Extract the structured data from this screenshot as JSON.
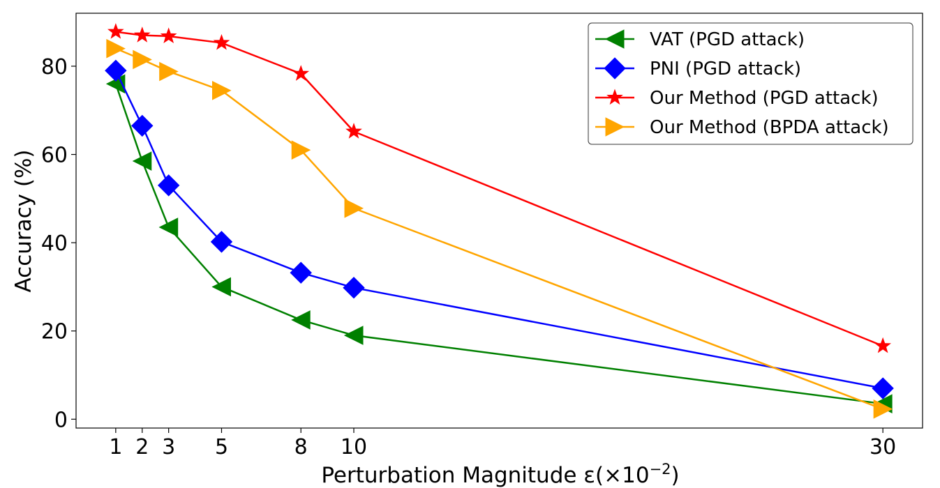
{
  "chart_data": {
    "type": "line",
    "title": "",
    "xlabel_main": "Perturbation Magnitude ε(×10",
    "xlabel_exp": "−2",
    "xlabel_close": ")",
    "ylabel": "Accuracy (%)",
    "x": [
      1,
      2,
      3,
      5,
      8,
      10,
      30
    ],
    "x_tick_labels": [
      "1",
      "2",
      "3",
      "5",
      "8",
      "10",
      "30"
    ],
    "y_ticks": [
      0,
      20,
      40,
      60,
      80
    ],
    "y_tick_labels": [
      "0",
      "20",
      "40",
      "60",
      "80"
    ],
    "xlim": [
      -0.5,
      31.5
    ],
    "ylim": [
      -2,
      92
    ],
    "grid": false,
    "legend_position": "top-right",
    "series": [
      {
        "name": "VAT (PGD attack)",
        "color": "#008000",
        "marker": "triangle-left",
        "values": [
          76,
          58.5,
          43.5,
          30,
          22.5,
          19,
          3.5
        ]
      },
      {
        "name": "PNI (PGD attack)",
        "color": "#0000ff",
        "marker": "diamond",
        "values": [
          79,
          66.5,
          53,
          40.2,
          33.2,
          29.8,
          7
        ]
      },
      {
        "name": "Our Method (PGD attack)",
        "color": "#ff0000",
        "marker": "star",
        "values": [
          87.8,
          87,
          86.8,
          85.3,
          78.3,
          65.2,
          16.6
        ]
      },
      {
        "name": "Our Method (BPDA attack)",
        "color": "#ffa500",
        "marker": "triangle-right",
        "values": [
          84,
          81.5,
          78.8,
          74.5,
          61,
          47.8,
          2.3
        ]
      }
    ]
  }
}
